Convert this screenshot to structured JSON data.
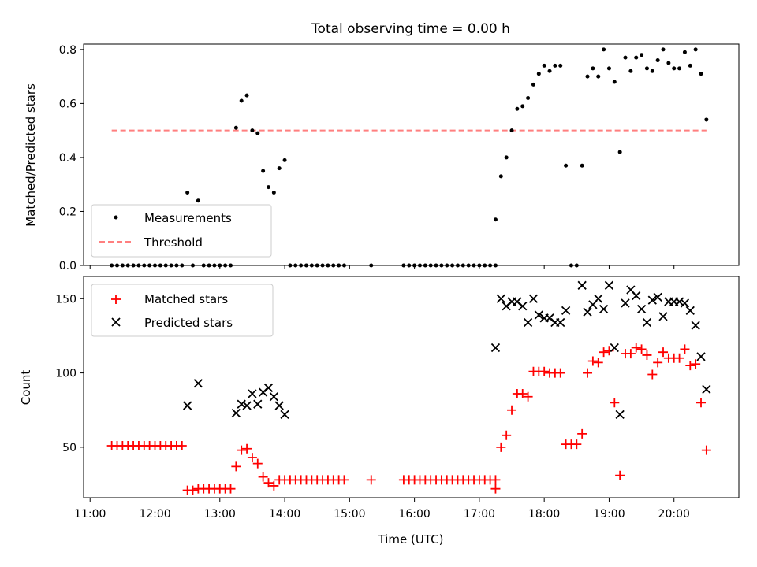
{
  "chart_data": [
    {
      "type": "scatter",
      "title": "Total observing time = 0.00 h",
      "xlabel": "",
      "ylabel": "Matched/Predicted stars",
      "xlim": [
        "10:54",
        "21:00"
      ],
      "ylim": [
        0,
        0.82
      ],
      "yticks": [
        "0.0",
        "0.2",
        "0.4",
        "0.6",
        "0.8"
      ],
      "legend_position": "lower left",
      "series": [
        {
          "name": "Measurements",
          "marker": "dot",
          "color": "#000000",
          "points": [
            [
              "11:20",
              0
            ],
            [
              "11:25",
              0
            ],
            [
              "11:30",
              0
            ],
            [
              "11:35",
              0
            ],
            [
              "11:40",
              0
            ],
            [
              "11:45",
              0
            ],
            [
              "11:50",
              0
            ],
            [
              "11:55",
              0
            ],
            [
              "12:00",
              0
            ],
            [
              "12:05",
              0
            ],
            [
              "12:10",
              0
            ],
            [
              "12:15",
              0
            ],
            [
              "12:20",
              0
            ],
            [
              "12:25",
              0
            ],
            [
              "12:30",
              0.27
            ],
            [
              "12:35",
              0
            ],
            [
              "12:40",
              0.24
            ],
            [
              "12:45",
              0
            ],
            [
              "12:50",
              0
            ],
            [
              "12:55",
              0
            ],
            [
              "13:00",
              0
            ],
            [
              "13:05",
              0
            ],
            [
              "13:10",
              0
            ],
            [
              "13:15",
              0.51
            ],
            [
              "13:20",
              0.61
            ],
            [
              "13:25",
              0.63
            ],
            [
              "13:30",
              0.5
            ],
            [
              "13:35",
              0.49
            ],
            [
              "13:40",
              0.35
            ],
            [
              "13:45",
              0.29
            ],
            [
              "13:50",
              0.27
            ],
            [
              "13:55",
              0.36
            ],
            [
              "14:00",
              0.39
            ],
            [
              "14:05",
              0
            ],
            [
              "14:10",
              0
            ],
            [
              "14:15",
              0
            ],
            [
              "14:20",
              0
            ],
            [
              "14:25",
              0
            ],
            [
              "14:30",
              0
            ],
            [
              "14:35",
              0
            ],
            [
              "14:40",
              0
            ],
            [
              "14:45",
              0
            ],
            [
              "14:50",
              0
            ],
            [
              "14:55",
              0
            ],
            [
              "15:20",
              0
            ],
            [
              "15:50",
              0
            ],
            [
              "15:55",
              0
            ],
            [
              "16:00",
              0
            ],
            [
              "16:05",
              0
            ],
            [
              "16:10",
              0
            ],
            [
              "16:15",
              0
            ],
            [
              "16:20",
              0
            ],
            [
              "16:25",
              0
            ],
            [
              "16:30",
              0
            ],
            [
              "16:35",
              0
            ],
            [
              "16:40",
              0
            ],
            [
              "16:45",
              0
            ],
            [
              "16:50",
              0
            ],
            [
              "16:55",
              0
            ],
            [
              "17:00",
              0
            ],
            [
              "17:05",
              0
            ],
            [
              "17:10",
              0
            ],
            [
              "17:15",
              0
            ],
            [
              "17:15",
              0.17
            ],
            [
              "17:20",
              0.33
            ],
            [
              "17:25",
              0.4
            ],
            [
              "17:30",
              0.5
            ],
            [
              "17:35",
              0.58
            ],
            [
              "17:40",
              0.59
            ],
            [
              "17:45",
              0.62
            ],
            [
              "17:50",
              0.67
            ],
            [
              "17:55",
              0.71
            ],
            [
              "18:00",
              0.74
            ],
            [
              "18:05",
              0.72
            ],
            [
              "18:10",
              0.74
            ],
            [
              "18:15",
              0.74
            ],
            [
              "18:20",
              0.37
            ],
            [
              "18:25",
              0
            ],
            [
              "18:30",
              0
            ],
            [
              "18:35",
              0.37
            ],
            [
              "18:40",
              0.7
            ],
            [
              "18:45",
              0.73
            ],
            [
              "18:50",
              0.7
            ],
            [
              "18:55",
              0.8
            ],
            [
              "19:00",
              0.73
            ],
            [
              "19:05",
              0.68
            ],
            [
              "19:10",
              0.42
            ],
            [
              "19:15",
              0.77
            ],
            [
              "19:20",
              0.72
            ],
            [
              "19:25",
              0.77
            ],
            [
              "19:30",
              0.78
            ],
            [
              "19:35",
              0.73
            ],
            [
              "19:40",
              0.72
            ],
            [
              "19:45",
              0.76
            ],
            [
              "19:50",
              0.8
            ],
            [
              "19:55",
              0.75
            ],
            [
              "20:00",
              0.73
            ],
            [
              "20:05",
              0.73
            ],
            [
              "20:10",
              0.79
            ],
            [
              "20:15",
              0.74
            ],
            [
              "20:20",
              0.8
            ],
            [
              "20:25",
              0.71
            ],
            [
              "20:30",
              0.54
            ]
          ]
        },
        {
          "name": "Threshold",
          "style": "dashed",
          "color": "#ff7f7f",
          "points": [
            [
              "11:20",
              0.5
            ],
            [
              "20:30",
              0.5
            ]
          ]
        }
      ]
    },
    {
      "type": "scatter",
      "title": "",
      "xlabel": "Time (UTC)",
      "ylabel": "Count",
      "xlim": [
        "10:54",
        "21:00"
      ],
      "ylim": [
        16,
        165
      ],
      "yticks": [
        "50",
        "100",
        "150"
      ],
      "xticks": [
        "11:00",
        "12:00",
        "13:00",
        "14:00",
        "15:00",
        "16:00",
        "17:00",
        "18:00",
        "19:00",
        "20:00"
      ],
      "legend_position": "upper left",
      "series": [
        {
          "name": "Matched stars",
          "marker": "plus",
          "color": "#ff0000",
          "points": [
            [
              "11:20",
              51
            ],
            [
              "11:25",
              51
            ],
            [
              "11:30",
              51
            ],
            [
              "11:35",
              51
            ],
            [
              "11:40",
              51
            ],
            [
              "11:45",
              51
            ],
            [
              "11:50",
              51
            ],
            [
              "11:55",
              51
            ],
            [
              "12:00",
              51
            ],
            [
              "12:05",
              51
            ],
            [
              "12:10",
              51
            ],
            [
              "12:15",
              51
            ],
            [
              "12:20",
              51
            ],
            [
              "12:25",
              51
            ],
            [
              "12:30",
              21
            ],
            [
              "12:35",
              21
            ],
            [
              "12:40",
              22
            ],
            [
              "12:45",
              22
            ],
            [
              "12:50",
              22
            ],
            [
              "12:55",
              22
            ],
            [
              "13:00",
              22
            ],
            [
              "13:05",
              22
            ],
            [
              "13:10",
              22
            ],
            [
              "13:15",
              37
            ],
            [
              "13:20",
              48
            ],
            [
              "13:25",
              49
            ],
            [
              "13:30",
              43
            ],
            [
              "13:35",
              39
            ],
            [
              "13:40",
              30
            ],
            [
              "13:45",
              26
            ],
            [
              "13:50",
              24
            ],
            [
              "13:55",
              28
            ],
            [
              "14:00",
              28
            ],
            [
              "14:05",
              28
            ],
            [
              "14:10",
              28
            ],
            [
              "14:15",
              28
            ],
            [
              "14:20",
              28
            ],
            [
              "14:25",
              28
            ],
            [
              "14:30",
              28
            ],
            [
              "14:35",
              28
            ],
            [
              "14:40",
              28
            ],
            [
              "14:45",
              28
            ],
            [
              "14:50",
              28
            ],
            [
              "14:55",
              28
            ],
            [
              "15:20",
              28
            ],
            [
              "15:50",
              28
            ],
            [
              "15:55",
              28
            ],
            [
              "16:00",
              28
            ],
            [
              "16:05",
              28
            ],
            [
              "16:10",
              28
            ],
            [
              "16:15",
              28
            ],
            [
              "16:20",
              28
            ],
            [
              "16:25",
              28
            ],
            [
              "16:30",
              28
            ],
            [
              "16:35",
              28
            ],
            [
              "16:40",
              28
            ],
            [
              "16:45",
              28
            ],
            [
              "16:50",
              28
            ],
            [
              "16:55",
              28
            ],
            [
              "17:00",
              28
            ],
            [
              "17:05",
              28
            ],
            [
              "17:10",
              28
            ],
            [
              "17:15",
              28
            ],
            [
              "17:15",
              22
            ],
            [
              "17:20",
              50
            ],
            [
              "17:25",
              58
            ],
            [
              "17:30",
              75
            ],
            [
              "17:35",
              86
            ],
            [
              "17:40",
              86
            ],
            [
              "17:45",
              84
            ],
            [
              "17:50",
              101
            ],
            [
              "17:55",
              101
            ],
            [
              "18:00",
              101
            ],
            [
              "18:05",
              100
            ],
            [
              "18:10",
              100
            ],
            [
              "18:15",
              100
            ],
            [
              "18:20",
              52
            ],
            [
              "18:25",
              52
            ],
            [
              "18:30",
              52
            ],
            [
              "18:35",
              59
            ],
            [
              "18:40",
              100
            ],
            [
              "18:45",
              108
            ],
            [
              "18:50",
              107
            ],
            [
              "18:55",
              114
            ],
            [
              "19:00",
              115
            ],
            [
              "19:05",
              80
            ],
            [
              "19:10",
              31
            ],
            [
              "19:15",
              113
            ],
            [
              "19:20",
              113
            ],
            [
              "19:25",
              117
            ],
            [
              "19:30",
              116
            ],
            [
              "19:35",
              112
            ],
            [
              "19:40",
              99
            ],
            [
              "19:45",
              107
            ],
            [
              "19:50",
              114
            ],
            [
              "19:55",
              110
            ],
            [
              "20:00",
              110
            ],
            [
              "20:05",
              110
            ],
            [
              "20:10",
              116
            ],
            [
              "20:15",
              105
            ],
            [
              "20:20",
              106
            ],
            [
              "20:25",
              80
            ],
            [
              "20:30",
              48
            ]
          ]
        },
        {
          "name": "Predicted stars",
          "marker": "x",
          "color": "#000000",
          "points": [
            [
              "12:30",
              78
            ],
            [
              "12:40",
              93
            ],
            [
              "13:15",
              73
            ],
            [
              "13:20",
              79
            ],
            [
              "13:25",
              78
            ],
            [
              "13:30",
              86
            ],
            [
              "13:35",
              79
            ],
            [
              "13:40",
              87
            ],
            [
              "13:45",
              90
            ],
            [
              "13:50",
              84
            ],
            [
              "13:55",
              78
            ],
            [
              "14:00",
              72
            ],
            [
              "17:15",
              117
            ],
            [
              "17:20",
              150
            ],
            [
              "17:25",
              145
            ],
            [
              "17:30",
              148
            ],
            [
              "17:35",
              148
            ],
            [
              "17:40",
              145
            ],
            [
              "17:45",
              134
            ],
            [
              "17:50",
              150
            ],
            [
              "17:55",
              139
            ],
            [
              "18:00",
              137
            ],
            [
              "18:05",
              137
            ],
            [
              "18:10",
              134
            ],
            [
              "18:15",
              134
            ],
            [
              "18:20",
              142
            ],
            [
              "18:35",
              159
            ],
            [
              "18:40",
              141
            ],
            [
              "18:45",
              146
            ],
            [
              "18:50",
              150
            ],
            [
              "18:55",
              143
            ],
            [
              "19:00",
              159
            ],
            [
              "19:05",
              117
            ],
            [
              "19:10",
              72
            ],
            [
              "19:15",
              147
            ],
            [
              "19:20",
              156
            ],
            [
              "19:25",
              152
            ],
            [
              "19:30",
              143
            ],
            [
              "19:35",
              134
            ],
            [
              "19:40",
              149
            ],
            [
              "19:45",
              151
            ],
            [
              "19:50",
              138
            ],
            [
              "19:55",
              148
            ],
            [
              "20:00",
              148
            ],
            [
              "20:05",
              148
            ],
            [
              "20:10",
              147
            ],
            [
              "20:15",
              142
            ],
            [
              "20:20",
              132
            ],
            [
              "20:25",
              111
            ],
            [
              "20:30",
              89
            ]
          ]
        }
      ]
    }
  ]
}
